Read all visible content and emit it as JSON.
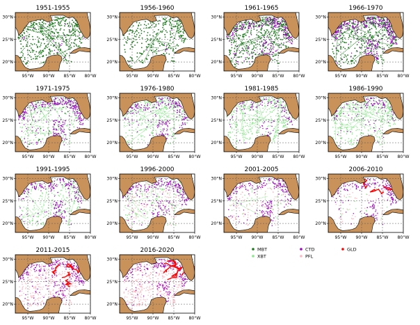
{
  "figure": {
    "panels": [
      {
        "title": "1951-1955",
        "layers": {
          "MBT": 0.85,
          "XBT": 0.0,
          "CTD": 0.05,
          "PFL": 0.0,
          "GLD": 0.0
        }
      },
      {
        "title": "1956-1960",
        "layers": {
          "MBT": 0.6,
          "XBT": 0.0,
          "CTD": 0.03,
          "PFL": 0.0,
          "GLD": 0.0
        }
      },
      {
        "title": "1961-1965",
        "layers": {
          "MBT": 0.9,
          "XBT": 0.0,
          "CTD": 0.6,
          "PFL": 0.0,
          "GLD": 0.0
        }
      },
      {
        "title": "1966-1970",
        "layers": {
          "MBT": 0.75,
          "XBT": 0.2,
          "CTD": 0.8,
          "PFL": 0.0,
          "GLD": 0.0
        }
      },
      {
        "title": "1971-1975",
        "layers": {
          "MBT": 0.05,
          "XBT": 0.6,
          "CTD": 0.75,
          "PFL": 0.0,
          "GLD": 0.0
        }
      },
      {
        "title": "1976-1980",
        "layers": {
          "MBT": 0.0,
          "XBT": 0.7,
          "CTD": 0.5,
          "PFL": 0.0,
          "GLD": 0.0
        }
      },
      {
        "title": "1981-1985",
        "layers": {
          "MBT": 0.0,
          "XBT": 0.8,
          "CTD": 0.25,
          "PFL": 0.0,
          "GLD": 0.0
        }
      },
      {
        "title": "1986-1990",
        "layers": {
          "MBT": 0.0,
          "XBT": 0.9,
          "CTD": 0.25,
          "PFL": 0.0,
          "GLD": 0.0
        }
      },
      {
        "title": "1991-1995",
        "layers": {
          "MBT": 0.0,
          "XBT": 0.6,
          "CTD": 0.5,
          "PFL": 0.0,
          "GLD": 0.0
        }
      },
      {
        "title": "1996-2000",
        "layers": {
          "MBT": 0.0,
          "XBT": 0.45,
          "CTD": 0.55,
          "PFL": 0.35,
          "GLD": 0.0
        }
      },
      {
        "title": "2001-2005",
        "layers": {
          "MBT": 0.0,
          "XBT": 0.15,
          "CTD": 0.5,
          "PFL": 0.3,
          "GLD": 0.0
        }
      },
      {
        "title": "2006-2010",
        "layers": {
          "MBT": 0.0,
          "XBT": 0.05,
          "CTD": 0.45,
          "PFL": 0.15,
          "GLD": 0.35
        }
      },
      {
        "title": "2011-2015",
        "layers": {
          "MBT": 0.0,
          "XBT": 0.0,
          "CTD": 0.55,
          "PFL": 0.8,
          "GLD": 0.5
        }
      },
      {
        "title": "2016-2020",
        "layers": {
          "MBT": 0.0,
          "XBT": 0.0,
          "CTD": 0.5,
          "PFL": 0.95,
          "GLD": 0.55
        }
      }
    ],
    "axes": {
      "lat_labels": [
        "30°N",
        "25°N",
        "20°N"
      ],
      "lon_labels": [
        "95°W",
        "90°W",
        "85°W",
        "80°W"
      ]
    },
    "legend": [
      {
        "key": "MBT",
        "label": "MBT",
        "color": "#1a7a1a"
      },
      {
        "key": "XBT",
        "label": "XBT",
        "color": "#86e886"
      },
      {
        "key": "CTD",
        "label": "CTD",
        "color": "#a000c8"
      },
      {
        "key": "PFL",
        "label": "PFL",
        "color": "#ffb6c1"
      },
      {
        "key": "GLD",
        "label": "GLD",
        "color": "#ff0000"
      }
    ],
    "colors": {
      "land": "#c8925a",
      "ocean": "#ffffff",
      "grid": "#555555"
    }
  }
}
